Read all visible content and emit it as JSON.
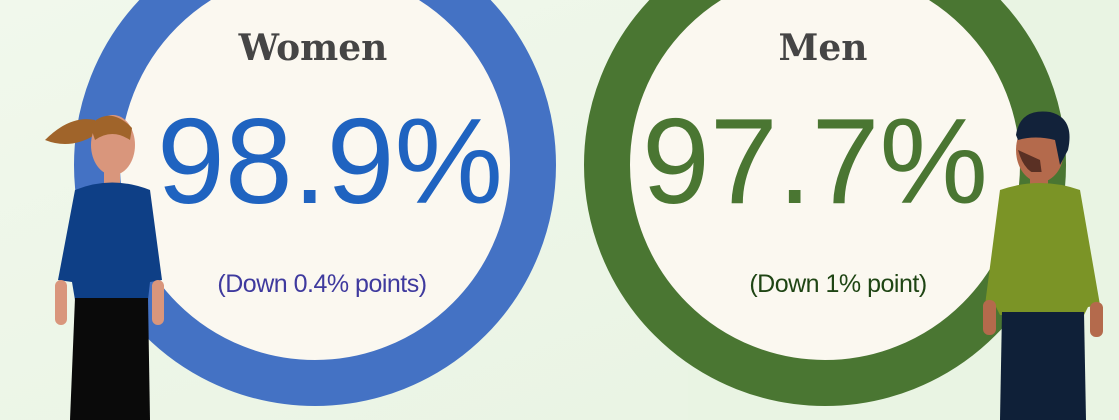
{
  "women": {
    "label": "Women",
    "value": "98.9%",
    "change": "(Down 0.4% points)"
  },
  "men": {
    "label": "Men",
    "value": "97.7%",
    "change": "(Down 1% point)"
  }
}
